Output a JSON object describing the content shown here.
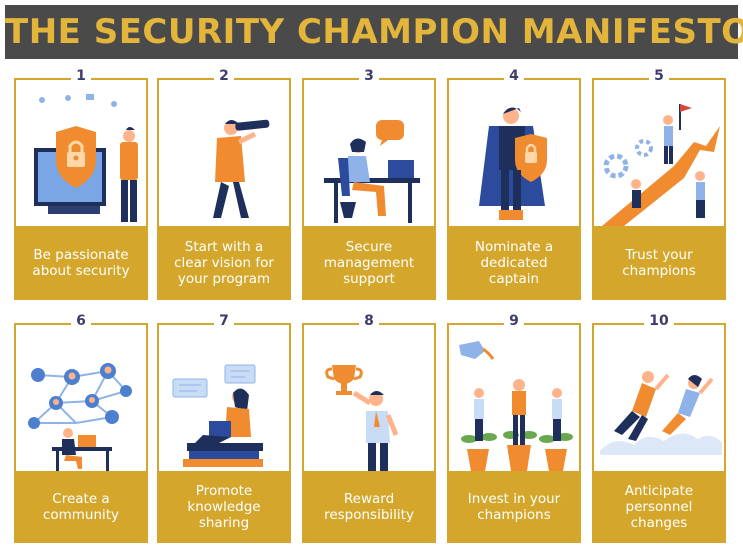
{
  "title": "THE SECURITY CHAMPION MANIFESTO",
  "colors": {
    "accent": "#d4a72c",
    "banner": "#4a4a4a",
    "title_text": "#e3b53b",
    "number_text": "#3d3d6b",
    "caption_text": "#ffffff"
  },
  "cards": [
    {
      "number": "1",
      "caption": "Be passionate\nabout security",
      "icon": "security-monitor-icon"
    },
    {
      "number": "2",
      "caption": "Start with a\nclear vision for\nyour program",
      "icon": "telescope-icon"
    },
    {
      "number": "3",
      "caption": "Secure\nmanagement\nsupport",
      "icon": "laptop-desk-icon"
    },
    {
      "number": "4",
      "caption": "Nominate a\ndedicated\ncaptain",
      "icon": "superhero-shield-icon"
    },
    {
      "number": "5",
      "caption": "Trust your\nchampions",
      "icon": "growth-arrow-icon"
    },
    {
      "number": "6",
      "caption": "Create a\ncommunity",
      "icon": "network-icon"
    },
    {
      "number": "7",
      "caption": "Promote\nknowledge\nsharing",
      "icon": "books-reading-icon"
    },
    {
      "number": "8",
      "caption": "Reward\nresponsibility",
      "icon": "trophy-icon"
    },
    {
      "number": "9",
      "caption": "Invest in your\nchampions",
      "icon": "watering-plants-icon"
    },
    {
      "number": "10",
      "caption": "Anticipate\npersonnel\nchanges",
      "icon": "flying-people-icon"
    }
  ]
}
